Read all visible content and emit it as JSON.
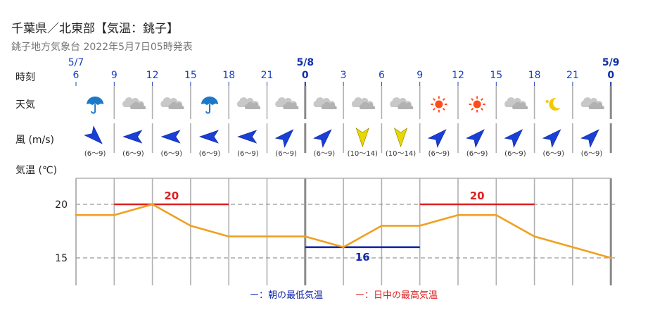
{
  "header": {
    "title": "千葉県／北東部【気温：銚子】",
    "subtitle": "銚子地方気象台 2022年5月7日05時発表"
  },
  "row_labels": {
    "time": "時刻",
    "weather": "天気",
    "wind": "風 (m/s)",
    "temp": "気温 (℃)"
  },
  "day_labels": [
    "5/7",
    "5/8",
    "5/9"
  ],
  "weather_icons": [
    "umbrella-icon",
    "cloud-icon",
    "cloud-icon",
    "umbrella-icon",
    "cloud-icon",
    "cloud-icon",
    "cloud-icon",
    "cloud-icon",
    "cloud-icon",
    "sun-icon",
    "sun-icon",
    "cloud-icon",
    "moon-icon",
    "cloud-icon"
  ],
  "wind": {
    "direction_icons": [
      "arrow-southeast-icon",
      "arrow-west-icon",
      "arrow-west-icon",
      "arrow-west-icon",
      "arrow-west-icon",
      "arrow-northeast-icon",
      "arrow-northeast-icon",
      "arrow-south-icon",
      "arrow-south-icon",
      "arrow-northeast-icon",
      "arrow-northeast-icon",
      "arrow-northeast-icon",
      "arrow-northeast-icon",
      "arrow-northeast-icon"
    ],
    "speeds": [
      "(6～9)",
      "(6～9)",
      "(6～9)",
      "(6～9)",
      "(6～9)",
      "(6～9)",
      "(6～9)",
      "(10～14)",
      "(10～14)",
      "(6～9)",
      "(6～9)",
      "(6～9)",
      "(6～9)",
      "(6～9)"
    ],
    "colors": {
      "normal": "#1a3fd6",
      "strong": "#e8d800"
    }
  },
  "legend": {
    "min": "ー：朝の最低気温",
    "max": "ー：日中の最高気温"
  },
  "colors": {
    "line": "#f0a020",
    "max": "#dd2020",
    "min": "#1428a8",
    "day_divider": "#8a8a8a",
    "hour_divider": "#b0b0b0",
    "wind_strong": "#e8d800"
  },
  "chart_data": {
    "type": "line",
    "title": "",
    "x": [
      "6",
      "9",
      "12",
      "15",
      "18",
      "21",
      "0",
      "3",
      "6",
      "9",
      "12",
      "15",
      "18",
      "21",
      "0"
    ],
    "ylabel": "気温 (℃)",
    "yticks": [
      15,
      20
    ],
    "ylim": [
      12.5,
      22.5
    ],
    "series": [
      {
        "values": [
          19,
          19,
          20,
          18,
          17,
          17,
          17,
          16,
          18,
          18,
          19,
          19,
          17,
          16,
          15
        ]
      }
    ],
    "levels": [
      {
        "kind": "max",
        "value": 20,
        "label": "20",
        "start": 1,
        "end": 4
      },
      {
        "kind": "min",
        "value": 16,
        "label": "16",
        "start": 6,
        "end": 9
      },
      {
        "kind": "max",
        "value": 20,
        "label": "20",
        "start": 9,
        "end": 12
      }
    ]
  }
}
